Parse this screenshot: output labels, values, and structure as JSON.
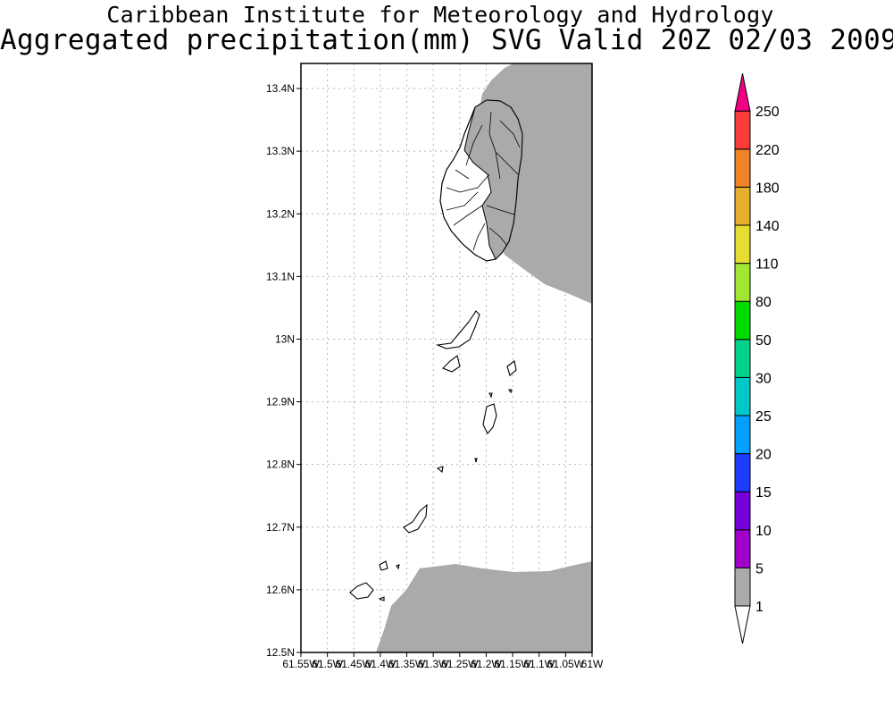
{
  "header": {
    "institute": "Caribbean Institute for Meteorology and Hydrology",
    "product": "Aggregated precipitation(mm) SVG Valid 20Z 02/03 2009"
  },
  "map": {
    "region": "St. Vincent and the Grenadines",
    "lat_range": [
      12.5,
      13.44
    ],
    "lon_range": [
      -61.55,
      -61.0
    ],
    "lat_tick_labels": [
      "13.4N",
      "13.3N",
      "13.2N",
      "13.1N",
      "13N",
      "12.9N",
      "12.8N",
      "12.7N",
      "12.6N",
      "12.5N"
    ],
    "lon_tick_labels": [
      "61.55W",
      "61.5W",
      "61.45W",
      "61.4W",
      "61.35W",
      "61.3W",
      "61.25W",
      "61.2W",
      "61.15W",
      "61.1W",
      "61.05W",
      "61W"
    ],
    "grid": true,
    "precip_fill_color": "#aaaaaa"
  },
  "colorbar": {
    "levels": [
      {
        "label": "1",
        "color": "#ffffff"
      },
      {
        "label": "5",
        "color": "#aaaaaa"
      },
      {
        "label": "10",
        "color": "#a000c8"
      },
      {
        "label": "15",
        "color": "#7800dc"
      },
      {
        "label": "20",
        "color": "#1e3cff"
      },
      {
        "label": "25",
        "color": "#00a0ff"
      },
      {
        "label": "30",
        "color": "#00c8c8"
      },
      {
        "label": "50",
        "color": "#00d28c"
      },
      {
        "label": "80",
        "color": "#00dc00"
      },
      {
        "label": "110",
        "color": "#a0e632"
      },
      {
        "label": "140",
        "color": "#e6dc32"
      },
      {
        "label": "180",
        "color": "#e6af2d"
      },
      {
        "label": "220",
        "color": "#f08228"
      },
      {
        "label": "250",
        "color": "#fa3c3c"
      }
    ],
    "top_arrow_color": "#f00082"
  }
}
